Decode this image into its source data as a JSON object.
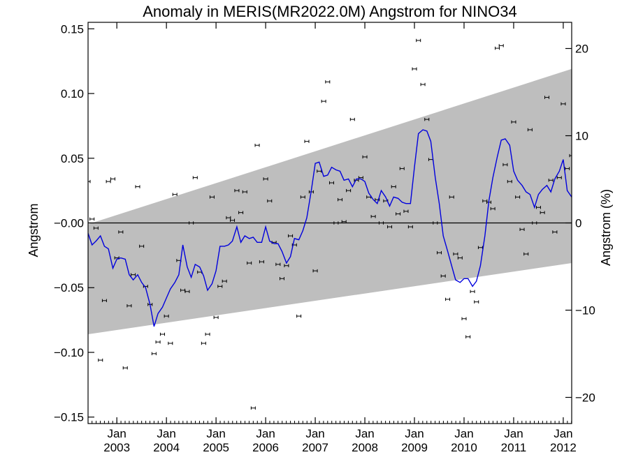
{
  "chart_data": {
    "type": "line",
    "title": "Anomaly in MERIS(MR2022.0M) Angstrom for NINO34",
    "ylabel_left": "Angstrom",
    "ylabel_right": "Angstrom (%)",
    "ylim_left": [
      -0.155,
      0.155
    ],
    "ylim_right": [
      -23,
      23
    ],
    "yticks_left": [
      -0.15,
      -0.1,
      -0.05,
      -0.0,
      0.05,
      0.1,
      0.15
    ],
    "ytick_labels_left": [
      "−0.15",
      "−0.10",
      "−0.05",
      "−0.00",
      "0.05",
      "0.10",
      "0.15"
    ],
    "yticks_right": [
      -20,
      -10,
      0,
      10,
      20
    ],
    "ytick_labels_right": [
      "−20",
      "−10",
      "0",
      "10",
      "20"
    ],
    "xlim": [
      2002.42,
      2012.17
    ],
    "xticks": [
      {
        "x": 2003.0,
        "month": "Jan",
        "year": "2003"
      },
      {
        "x": 2004.0,
        "month": "Jan",
        "year": "2004"
      },
      {
        "x": 2005.0,
        "month": "Jan",
        "year": "2005"
      },
      {
        "x": 2006.0,
        "month": "Jan",
        "year": "2006"
      },
      {
        "x": 2007.0,
        "month": "Jan",
        "year": "2007"
      },
      {
        "x": 2008.0,
        "month": "Jan",
        "year": "2008"
      },
      {
        "x": 2009.0,
        "month": "Jan",
        "year": "2009"
      },
      {
        "x": 2010.0,
        "month": "Jan",
        "year": "2010"
      },
      {
        "x": 2011.0,
        "month": "Jan",
        "year": "2011"
      },
      {
        "x": 2012.0,
        "month": "Jan",
        "year": "2012"
      }
    ],
    "zero_line": 0,
    "trend_band": {
      "x": [
        2002.42,
        2012.17
      ],
      "upper": [
        -0.001,
        0.119
      ],
      "lower": [
        -0.086,
        -0.031
      ],
      "color": "#bebebe"
    },
    "series": [
      {
        "style": "line",
        "color": "#0000dd",
        "x": [
          2002.42,
          2002.5,
          2002.58,
          2002.67,
          2002.75,
          2002.83,
          2002.92,
          2003.0,
          2003.08,
          2003.17,
          2003.25,
          2003.33,
          2003.42,
          2003.5,
          2003.58,
          2003.67,
          2003.75,
          2003.83,
          2003.92,
          2004.0,
          2004.08,
          2004.17,
          2004.25,
          2004.33,
          2004.42,
          2004.5,
          2004.58,
          2004.67,
          2004.75,
          2004.83,
          2004.92,
          2005.0,
          2005.08,
          2005.17,
          2005.25,
          2005.33,
          2005.42,
          2005.5,
          2005.58,
          2005.67,
          2005.75,
          2005.83,
          2005.92,
          2006.0,
          2006.08,
          2006.17,
          2006.25,
          2006.33,
          2006.42,
          2006.5,
          2006.58,
          2006.67,
          2006.75,
          2006.83,
          2006.92,
          2007.0,
          2007.08,
          2007.17,
          2007.25,
          2007.33,
          2007.42,
          2007.5,
          2007.58,
          2007.67,
          2007.75,
          2007.83,
          2007.92,
          2008.0,
          2008.08,
          2008.17,
          2008.25,
          2008.33,
          2008.42,
          2008.5,
          2008.58,
          2008.67,
          2008.75,
          2008.83,
          2008.92,
          2009.0,
          2009.08,
          2009.17,
          2009.25,
          2009.33,
          2009.42,
          2009.5,
          2009.58,
          2009.67,
          2009.75,
          2009.83,
          2009.92,
          2010.0,
          2010.08,
          2010.17,
          2010.25,
          2010.33,
          2010.42,
          2010.5,
          2010.58,
          2010.67,
          2010.75,
          2010.83,
          2010.92,
          2011.0,
          2011.08,
          2011.17,
          2011.25,
          2011.33,
          2011.42,
          2011.5,
          2011.58,
          2011.67,
          2011.75,
          2011.83,
          2011.92,
          2012.0,
          2012.08,
          2012.17
        ],
        "values": [
          -0.008,
          -0.017,
          -0.014,
          -0.01,
          -0.018,
          -0.02,
          -0.035,
          -0.028,
          -0.027,
          -0.028,
          -0.04,
          -0.044,
          -0.04,
          -0.046,
          -0.05,
          -0.063,
          -0.08,
          -0.07,
          -0.065,
          -0.058,
          -0.051,
          -0.046,
          -0.04,
          -0.017,
          -0.034,
          -0.042,
          -0.032,
          -0.034,
          -0.041,
          -0.052,
          -0.047,
          -0.037,
          -0.018,
          -0.018,
          -0.017,
          -0.014,
          -0.003,
          -0.015,
          -0.01,
          -0.012,
          -0.011,
          -0.015,
          -0.015,
          -0.003,
          -0.014,
          -0.016,
          -0.016,
          -0.022,
          -0.031,
          -0.026,
          -0.012,
          -0.013,
          -0.006,
          0.004,
          0.025,
          0.046,
          0.047,
          0.036,
          0.037,
          0.043,
          0.041,
          0.04,
          0.033,
          0.034,
          0.028,
          0.034,
          0.034,
          0.032,
          0.023,
          0.018,
          0.015,
          0.025,
          0.02,
          0.013,
          0.02,
          0.019,
          0.016,
          0.015,
          0.015,
          0.043,
          0.069,
          0.072,
          0.071,
          0.063,
          0.035,
          0.015,
          -0.01,
          -0.022,
          -0.033,
          -0.044,
          -0.046,
          -0.043,
          -0.043,
          -0.049,
          -0.045,
          -0.033,
          -0.01,
          0.017,
          0.035,
          0.051,
          0.064,
          0.065,
          0.06,
          0.04,
          0.033,
          0.029,
          0.024,
          0.022,
          0.012,
          0.022,
          0.026,
          0.029,
          0.024,
          0.034,
          0.04,
          0.049,
          0.025,
          0.02
        ]
      },
      {
        "style": "errorbar-points",
        "color": "#000000",
        "error": 0.0012,
        "x": [
          2002.42,
          2002.5,
          2002.58,
          2002.67,
          2002.75,
          2002.83,
          2002.92,
          2003.0,
          2003.08,
          2003.17,
          2003.25,
          2003.33,
          2003.42,
          2003.5,
          2003.58,
          2003.67,
          2003.75,
          2003.83,
          2003.92,
          2004.0,
          2004.08,
          2004.17,
          2004.25,
          2004.33,
          2004.42,
          2004.5,
          2004.58,
          2004.67,
          2004.75,
          2004.83,
          2004.92,
          2005.0,
          2005.08,
          2005.17,
          2005.25,
          2005.33,
          2005.42,
          2005.5,
          2005.58,
          2005.67,
          2005.75,
          2005.83,
          2005.92,
          2006.0,
          2006.08,
          2006.17,
          2006.25,
          2006.33,
          2006.42,
          2006.5,
          2006.58,
          2006.67,
          2006.75,
          2006.83,
          2006.92,
          2007.0,
          2007.08,
          2007.17,
          2007.25,
          2007.33,
          2007.42,
          2007.5,
          2007.58,
          2007.67,
          2007.75,
          2007.83,
          2007.92,
          2008.0,
          2008.08,
          2008.17,
          2008.25,
          2008.33,
          2008.42,
          2008.5,
          2008.58,
          2008.67,
          2008.75,
          2008.83,
          2008.92,
          2009.0,
          2009.08,
          2009.17,
          2009.25,
          2009.33,
          2009.42,
          2009.5,
          2009.58,
          2009.67,
          2009.75,
          2009.83,
          2009.92,
          2010.0,
          2010.08,
          2010.17,
          2010.25,
          2010.33,
          2010.42,
          2010.5,
          2010.58,
          2010.67,
          2010.75,
          2010.83,
          2010.92,
          2011.0,
          2011.08,
          2011.17,
          2011.25,
          2011.33,
          2011.42,
          2011.5,
          2011.58,
          2011.67,
          2011.75,
          2011.83,
          2011.92,
          2012.0,
          2012.08,
          2012.17
        ],
        "values": [
          0.032,
          0.003,
          -0.004,
          -0.106,
          -0.06,
          0.032,
          0.034,
          -0.027,
          -0.007,
          -0.112,
          -0.064,
          -0.04,
          0.028,
          -0.018,
          -0.049,
          -0.063,
          -0.101,
          -0.092,
          -0.086,
          -0.072,
          -0.093,
          0.022,
          -0.029,
          -0.052,
          -0.053,
          0.0,
          0.035,
          -0.038,
          -0.093,
          -0.086,
          0.02,
          -0.073,
          -0.049,
          -0.045,
          0.004,
          0.002,
          0.025,
          0.008,
          0.024,
          -0.031,
          -0.143,
          0.06,
          -0.03,
          0.034,
          0.017,
          -0.015,
          -0.032,
          -0.043,
          -0.033,
          -0.01,
          -0.017,
          -0.072,
          0.02,
          0.063,
          0.024,
          -0.037,
          0.04,
          0.094,
          0.109,
          0.031,
          0.0,
          0.018,
          0.001,
          0.025,
          0.08,
          0.033,
          0.035,
          0.051,
          0.02,
          0.005,
          0.018,
          0.0,
          0.017,
          -0.003,
          0.028,
          0.007,
          0.042,
          0.009,
          -0.003,
          0.119,
          0.141,
          0.107,
          0.08,
          0.049,
          0.0,
          -0.023,
          -0.041,
          -0.059,
          0.02,
          -0.024,
          -0.027,
          -0.074,
          -0.088,
          -0.053,
          -0.061,
          -0.019,
          0.017,
          0.016,
          0.011,
          0.135,
          0.137,
          0.045,
          0.032,
          0.078,
          0.02,
          -0.005,
          -0.024,
          0.072,
          0.0,
          0.012,
          0.008,
          0.097,
          0.033,
          -0.007,
          0.035,
          0.092,
          0.042,
          0.052
        ]
      }
    ],
    "grid": false,
    "legend": "none"
  }
}
